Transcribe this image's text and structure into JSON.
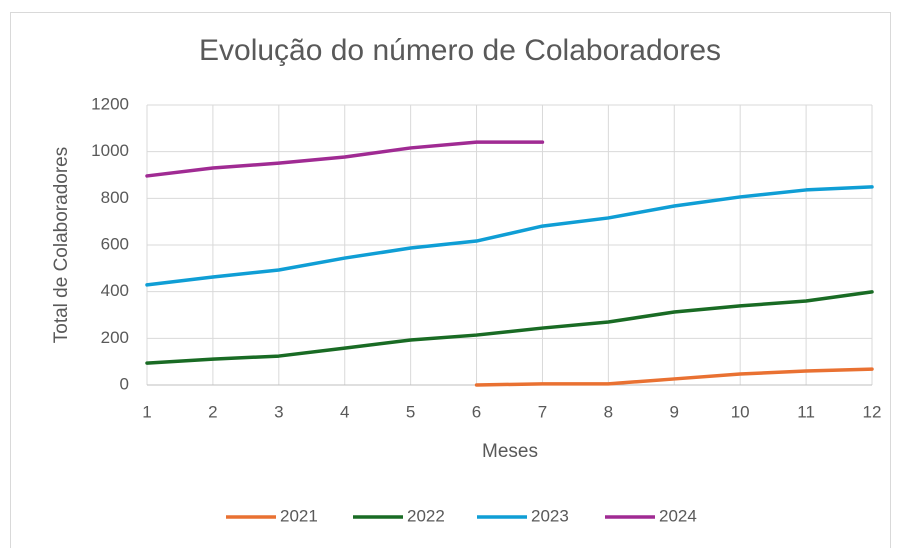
{
  "chart_data": {
    "type": "line",
    "title": "Evolução do número de Colaboradores",
    "x_label": "Meses",
    "y_label": "Total de Colaboradores",
    "categories": [
      "1",
      "2",
      "3",
      "4",
      "5",
      "6",
      "7",
      "8",
      "9",
      "10",
      "11",
      "12"
    ],
    "series": [
      {
        "name": "2021",
        "color": "#e97132",
        "values": [
          null,
          null,
          null,
          null,
          null,
          0,
          5,
          5,
          26,
          47,
          60,
          68
        ]
      },
      {
        "name": "2022",
        "color": "#196b24",
        "values": [
          94,
          111,
          124,
          158,
          193,
          214,
          244,
          270,
          313,
          339,
          360,
          399
        ]
      },
      {
        "name": "2023",
        "color": "#0f9ed5",
        "values": [
          429,
          463,
          493,
          544,
          587,
          617,
          681,
          716,
          767,
          806,
          836,
          849
        ]
      },
      {
        "name": "2024",
        "color": "#a02b93",
        "values": [
          896,
          930,
          951,
          977,
          1016,
          1041,
          1041,
          null,
          null,
          null,
          null,
          null
        ]
      }
    ],
    "ylim": [
      0,
      1200
    ],
    "yticks": [
      0,
      200,
      400,
      600,
      800,
      1000,
      1200
    ],
    "grid": true,
    "legend": "bottom"
  }
}
